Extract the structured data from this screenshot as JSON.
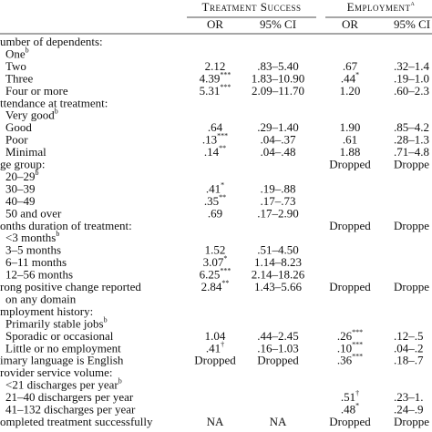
{
  "table": {
    "groups": [
      {
        "text": "Treatment Success"
      },
      {
        "text": "Employment",
        "sup": "a"
      }
    ],
    "columns": [
      "OR",
      "95% CI",
      "OR",
      "95% CI"
    ],
    "rows": [
      {
        "label": "umber of dependents:",
        "section": true
      },
      {
        "label": "One",
        "label_sup": "b"
      },
      {
        "label": "Two",
        "cells": [
          "2.12",
          ".83–5.40",
          ".67",
          ".32–1.4"
        ]
      },
      {
        "label": "Three",
        "cells": [
          "4.39",
          "1.83–10.90",
          ".44",
          ".19–1.0"
        ],
        "sups": [
          "***",
          null,
          "*",
          null
        ]
      },
      {
        "label": "Four or more",
        "cells": [
          "5.31",
          "2.09–11.70",
          "1.20",
          ".60–2.3"
        ],
        "sups": [
          "***",
          null,
          null,
          null
        ]
      },
      {
        "label": "ttendance at treatment:",
        "section": true
      },
      {
        "label": "Very good",
        "label_sup": "b"
      },
      {
        "label": "Good",
        "cells": [
          ".64",
          ".29–1.40",
          "1.90",
          ".85–4.2"
        ]
      },
      {
        "label": "Poor",
        "cells": [
          ".13",
          ".04–.37",
          ".61",
          ".28–1.3"
        ],
        "sups": [
          "***",
          null,
          null,
          null
        ]
      },
      {
        "label": "Minimal",
        "cells": [
          ".14",
          ".04–.48",
          "1.88",
          ".71–4.8"
        ],
        "sups": [
          "**",
          null,
          null,
          null
        ]
      },
      {
        "label": "ge group:",
        "section": true,
        "cells": [
          null,
          null,
          "Dropped",
          "Droppe"
        ]
      },
      {
        "label": "20–29",
        "label_sup": "b"
      },
      {
        "label": "30–39",
        "cells": [
          ".41",
          ".19–.88",
          null,
          null
        ],
        "sups": [
          "*",
          null,
          null,
          null
        ]
      },
      {
        "label": "40–49",
        "cells": [
          ".35",
          ".17–.73",
          null,
          null
        ],
        "sups": [
          "**",
          null,
          null,
          null
        ]
      },
      {
        "label": "50 and over",
        "cells": [
          ".69",
          ".17–2.90",
          null,
          null
        ]
      },
      {
        "label": "onths duration of treatment:",
        "section": true,
        "cells": [
          null,
          null,
          "Dropped",
          "Droppe"
        ]
      },
      {
        "label": "<3 months",
        "label_sup": "b"
      },
      {
        "label": "3–5 months",
        "cells": [
          "1.52",
          ".51–4.50",
          null,
          null
        ]
      },
      {
        "label": "6–11 months",
        "cells": [
          "3.07",
          "1.14–8.23",
          null,
          null
        ],
        "sups": [
          "*",
          null,
          null,
          null
        ]
      },
      {
        "label": "12–56 months",
        "cells": [
          "6.25",
          "2.14–18.26",
          null,
          null
        ],
        "sups": [
          "***",
          null,
          null,
          null
        ]
      },
      {
        "label": "rong positive change reported",
        "section": true,
        "cells": [
          "2.84",
          "1.43–5.66",
          "Dropped",
          "Droppe"
        ],
        "sups": [
          "**",
          null,
          null,
          null
        ]
      },
      {
        "label": "on any domain"
      },
      {
        "label": "mployment history:",
        "section": true
      },
      {
        "label": "Primarily stable jobs",
        "label_sup": "b"
      },
      {
        "label": "Sporadic or occasional",
        "cells": [
          "1.04",
          ".44–2.45",
          ".26",
          ".12–.5"
        ],
        "sups": [
          null,
          null,
          "***",
          null
        ]
      },
      {
        "label": "Little or no employment",
        "cells": [
          ".41",
          ".16–1.03",
          ".10",
          ".04–.2"
        ],
        "sups": [
          "†",
          null,
          "***",
          null
        ]
      },
      {
        "label": "imary language is English",
        "section": true,
        "cells": [
          "Dropped",
          "Dropped",
          ".36",
          ".18–.7"
        ],
        "sups": [
          null,
          null,
          "***",
          null
        ]
      },
      {
        "label": "rovider service volume:",
        "section": true
      },
      {
        "label": "<21 discharges per year",
        "label_sup": "b"
      },
      {
        "label": "21–40 dischargers per year",
        "cells": [
          null,
          null,
          ".51",
          ".23–1."
        ],
        "sups": [
          null,
          null,
          "†",
          null
        ]
      },
      {
        "label": "41–132 discharges per year",
        "cells": [
          null,
          null,
          ".48",
          ".24–.9"
        ],
        "sups": [
          null,
          null,
          "*",
          null
        ]
      },
      {
        "label": "ompleted treatment successfully",
        "section": true,
        "cells": [
          "NA",
          "NA",
          "Dropped",
          "Droppe"
        ]
      }
    ]
  }
}
